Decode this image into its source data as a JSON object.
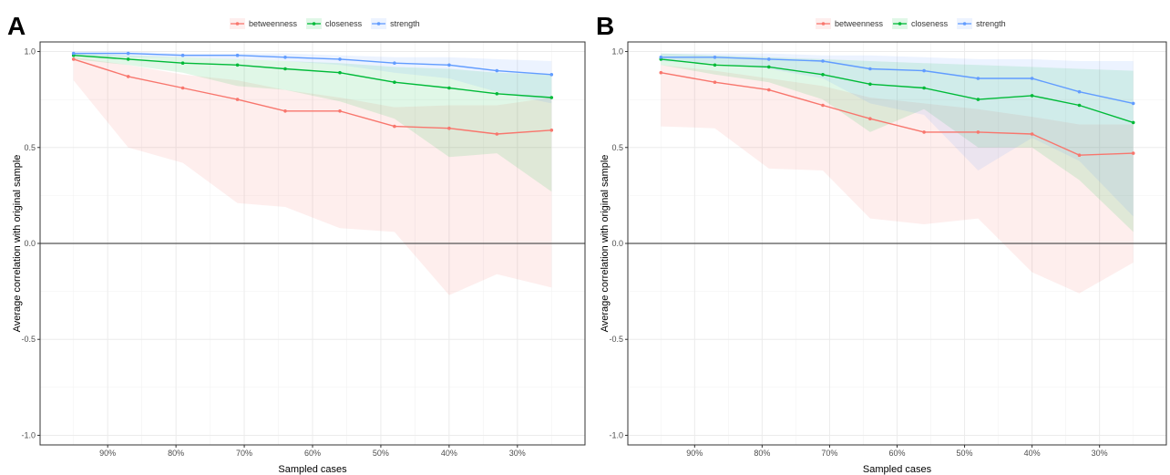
{
  "chart_data": [
    {
      "type": "line",
      "panel_label": "A",
      "xlabel": "Sampled cases",
      "ylabel": "Average correlation with original sample",
      "ylim": [
        -1.05,
        1.05
      ],
      "yticks": [
        1.0,
        0.5,
        0.0,
        -0.5,
        -1.0
      ],
      "ytick_labels": [
        "1.0",
        "0.5",
        "0.0",
        "-0.5",
        "-1.0"
      ],
      "xticks": [
        0.9,
        0.8,
        0.7,
        0.6,
        0.5,
        0.4,
        0.3
      ],
      "xtick_labels": [
        "90%",
        "80%",
        "70%",
        "60%",
        "50%",
        "40%",
        "30%"
      ],
      "xlim": [
        0.999,
        0.201
      ],
      "x": [
        0.95,
        0.87,
        0.79,
        0.71,
        0.64,
        0.56,
        0.48,
        0.4,
        0.33,
        0.25
      ],
      "grid": true,
      "legend_position": "top",
      "hline": 0,
      "series": [
        {
          "name": "betweenness",
          "color": "#F8766D",
          "values": [
            0.96,
            0.87,
            0.81,
            0.75,
            0.69,
            0.69,
            0.61,
            0.6,
            0.57,
            0.59
          ],
          "lower": [
            0.85,
            0.5,
            0.42,
            0.21,
            0.19,
            0.08,
            0.06,
            -0.27,
            -0.16,
            -0.23
          ],
          "upper": [
            0.97,
            0.93,
            0.88,
            0.85,
            0.8,
            0.76,
            0.71,
            0.72,
            0.72,
            0.76
          ]
        },
        {
          "name": "closeness",
          "color": "#00BA38",
          "values": [
            0.98,
            0.96,
            0.94,
            0.93,
            0.91,
            0.89,
            0.84,
            0.81,
            0.78,
            0.76
          ],
          "lower": [
            0.96,
            0.93,
            0.89,
            0.82,
            0.8,
            0.74,
            0.65,
            0.45,
            0.47,
            0.27
          ],
          "upper": [
            0.99,
            0.98,
            0.97,
            0.96,
            0.95,
            0.94,
            0.92,
            0.91,
            0.89,
            0.88
          ]
        },
        {
          "name": "strength",
          "color": "#619CFF",
          "values": [
            0.99,
            0.99,
            0.98,
            0.98,
            0.97,
            0.96,
            0.94,
            0.93,
            0.9,
            0.88
          ],
          "lower": [
            0.98,
            0.97,
            0.97,
            0.96,
            0.95,
            0.93,
            0.89,
            0.86,
            0.79,
            0.73
          ],
          "upper": [
            1.0,
            1.0,
            0.99,
            0.99,
            0.99,
            0.98,
            0.97,
            0.97,
            0.96,
            0.95
          ]
        }
      ]
    },
    {
      "type": "line",
      "panel_label": "B",
      "xlabel": "Sampled cases",
      "ylabel": "Average correlation with original sample",
      "ylim": [
        -1.05,
        1.05
      ],
      "yticks": [
        1.0,
        0.5,
        0.0,
        -0.5,
        -1.0
      ],
      "ytick_labels": [
        "1.0",
        "0.5",
        "0.0",
        "-0.5",
        "-1.0"
      ],
      "xticks": [
        0.9,
        0.8,
        0.7,
        0.6,
        0.5,
        0.4,
        0.3
      ],
      "xtick_labels": [
        "90%",
        "80%",
        "70%",
        "60%",
        "50%",
        "40%",
        "30%"
      ],
      "xlim": [
        0.999,
        0.201
      ],
      "x": [
        0.95,
        0.87,
        0.79,
        0.71,
        0.64,
        0.56,
        0.48,
        0.4,
        0.33,
        0.25
      ],
      "grid": true,
      "legend_position": "top",
      "hline": 0,
      "series": [
        {
          "name": "betweenness",
          "color": "#F8766D",
          "values": [
            0.89,
            0.84,
            0.8,
            0.72,
            0.65,
            0.58,
            0.58,
            0.57,
            0.46,
            0.47
          ],
          "lower": [
            0.61,
            0.6,
            0.39,
            0.38,
            0.13,
            0.1,
            0.13,
            -0.15,
            -0.26,
            -0.1
          ],
          "upper": [
            0.93,
            0.9,
            0.86,
            0.82,
            0.76,
            0.73,
            0.7,
            0.66,
            0.62,
            0.62
          ]
        },
        {
          "name": "closeness",
          "color": "#00BA38",
          "values": [
            0.96,
            0.93,
            0.92,
            0.88,
            0.83,
            0.81,
            0.75,
            0.77,
            0.72,
            0.63
          ],
          "lower": [
            0.93,
            0.88,
            0.84,
            0.75,
            0.58,
            0.7,
            0.5,
            0.5,
            0.33,
            0.06
          ],
          "upper": [
            0.99,
            0.98,
            0.97,
            0.96,
            0.95,
            0.94,
            0.93,
            0.92,
            0.91,
            0.9
          ]
        },
        {
          "name": "strength",
          "color": "#619CFF",
          "values": [
            0.97,
            0.97,
            0.96,
            0.95,
            0.91,
            0.9,
            0.86,
            0.86,
            0.79,
            0.73
          ],
          "lower": [
            0.95,
            0.94,
            0.91,
            0.86,
            0.73,
            0.67,
            0.38,
            0.55,
            0.43,
            0.14
          ],
          "upper": [
            0.99,
            0.99,
            0.99,
            0.98,
            0.98,
            0.97,
            0.96,
            0.96,
            0.95,
            0.95
          ]
        }
      ]
    }
  ]
}
